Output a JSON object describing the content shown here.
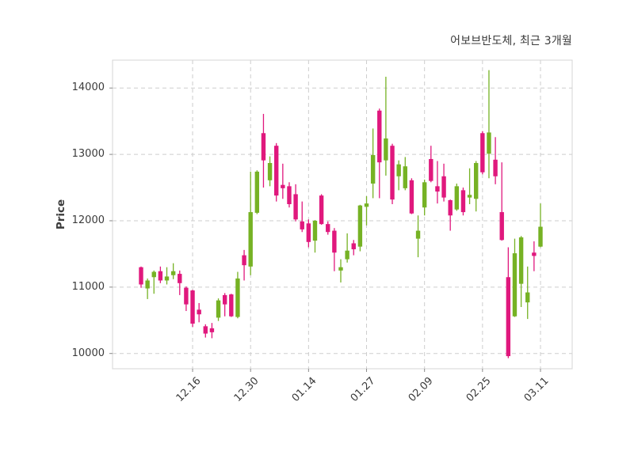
{
  "chart_data": {
    "type": "candlestick",
    "title": "어보브반도체, 최근 3개월",
    "ylabel": "Price",
    "ylim": [
      9770,
      14420
    ],
    "y_ticks": [
      10000,
      11000,
      12000,
      13000,
      14000
    ],
    "x_tick_labels": [
      "12.16",
      "12.30",
      "01.14",
      "01.27",
      "02.09",
      "02.25",
      "03.11"
    ],
    "x_tick_candle_indices": [
      8,
      17,
      26,
      35,
      44,
      53,
      62
    ],
    "grid": true,
    "grid_style": "dashed",
    "legend": "none",
    "up_color": "#76b224",
    "down_color": "#e0187d",
    "ohlc_order": [
      "open",
      "high",
      "low",
      "close"
    ],
    "candles": [
      [
        11300,
        11310,
        10990,
        11040
      ],
      [
        10980,
        11130,
        10820,
        11100
      ],
      [
        11150,
        11250,
        10900,
        11230
      ],
      [
        11240,
        11310,
        11060,
        11100
      ],
      [
        11100,
        11300,
        11040,
        11160
      ],
      [
        11180,
        11360,
        11120,
        11240
      ],
      [
        11200,
        11250,
        10880,
        11060
      ],
      [
        10990,
        11010,
        10640,
        10740
      ],
      [
        10950,
        10960,
        10400,
        10450
      ],
      [
        10660,
        10760,
        10470,
        10590
      ],
      [
        10410,
        10440,
        10240,
        10300
      ],
      [
        10380,
        10460,
        10230,
        10320
      ],
      [
        10540,
        10830,
        10490,
        10800
      ],
      [
        10880,
        10910,
        10560,
        10740
      ],
      [
        10890,
        10900,
        10550,
        10560
      ],
      [
        10550,
        11230,
        10530,
        11130
      ],
      [
        11480,
        11560,
        11100,
        11330
      ],
      [
        11310,
        12740,
        11180,
        12130
      ],
      [
        12120,
        12760,
        12100,
        12740
      ],
      [
        13320,
        13610,
        12500,
        12910
      ],
      [
        12610,
        12970,
        12520,
        12870
      ],
      [
        13130,
        13170,
        12290,
        12380
      ],
      [
        12540,
        12860,
        12330,
        12490
      ],
      [
        12520,
        12580,
        12200,
        12250
      ],
      [
        12400,
        12550,
        11990,
        12020
      ],
      [
        11990,
        12290,
        11830,
        11870
      ],
      [
        11960,
        12020,
        11600,
        11680
      ],
      [
        11700,
        12010,
        11520,
        12000
      ],
      [
        12380,
        12400,
        11940,
        11950
      ],
      [
        11950,
        11990,
        11790,
        11830
      ],
      [
        11850,
        11890,
        11240,
        11520
      ],
      [
        11250,
        11420,
        11070,
        11300
      ],
      [
        11420,
        11810,
        11370,
        11550
      ],
      [
        11660,
        11710,
        11480,
        11570
      ],
      [
        11610,
        12240,
        11540,
        12230
      ],
      [
        12210,
        12370,
        11930,
        12260
      ],
      [
        12560,
        13390,
        12340,
        12990
      ],
      [
        13660,
        13690,
        12340,
        12880
      ],
      [
        12910,
        14170,
        12680,
        13240
      ],
      [
        13130,
        13160,
        12250,
        12320
      ],
      [
        12670,
        12910,
        12460,
        12850
      ],
      [
        12490,
        12960,
        12460,
        12820
      ],
      [
        12610,
        12640,
        12100,
        12110
      ],
      [
        11730,
        12080,
        11450,
        11850
      ],
      [
        12200,
        12620,
        12080,
        12580
      ],
      [
        12930,
        13130,
        12580,
        12600
      ],
      [
        12520,
        12900,
        12260,
        12440
      ],
      [
        12670,
        12860,
        12290,
        12350
      ],
      [
        12310,
        12320,
        11850,
        12080
      ],
      [
        12170,
        12560,
        12150,
        12520
      ],
      [
        12460,
        12500,
        12080,
        12130
      ],
      [
        12350,
        12790,
        12250,
        12390
      ],
      [
        12330,
        12900,
        12140,
        12870
      ],
      [
        13320,
        13350,
        12700,
        12730
      ],
      [
        13010,
        14270,
        12640,
        13330
      ],
      [
        12920,
        13260,
        12550,
        12670
      ],
      [
        12130,
        12880,
        11700,
        11710
      ],
      [
        11150,
        11600,
        9930,
        9960
      ],
      [
        10560,
        11730,
        10550,
        11510
      ],
      [
        11050,
        11770,
        10700,
        11750
      ],
      [
        10770,
        11310,
        10520,
        10920
      ],
      [
        11520,
        11690,
        11240,
        11470
      ],
      [
        11610,
        12260,
        11600,
        11910
      ]
    ]
  }
}
